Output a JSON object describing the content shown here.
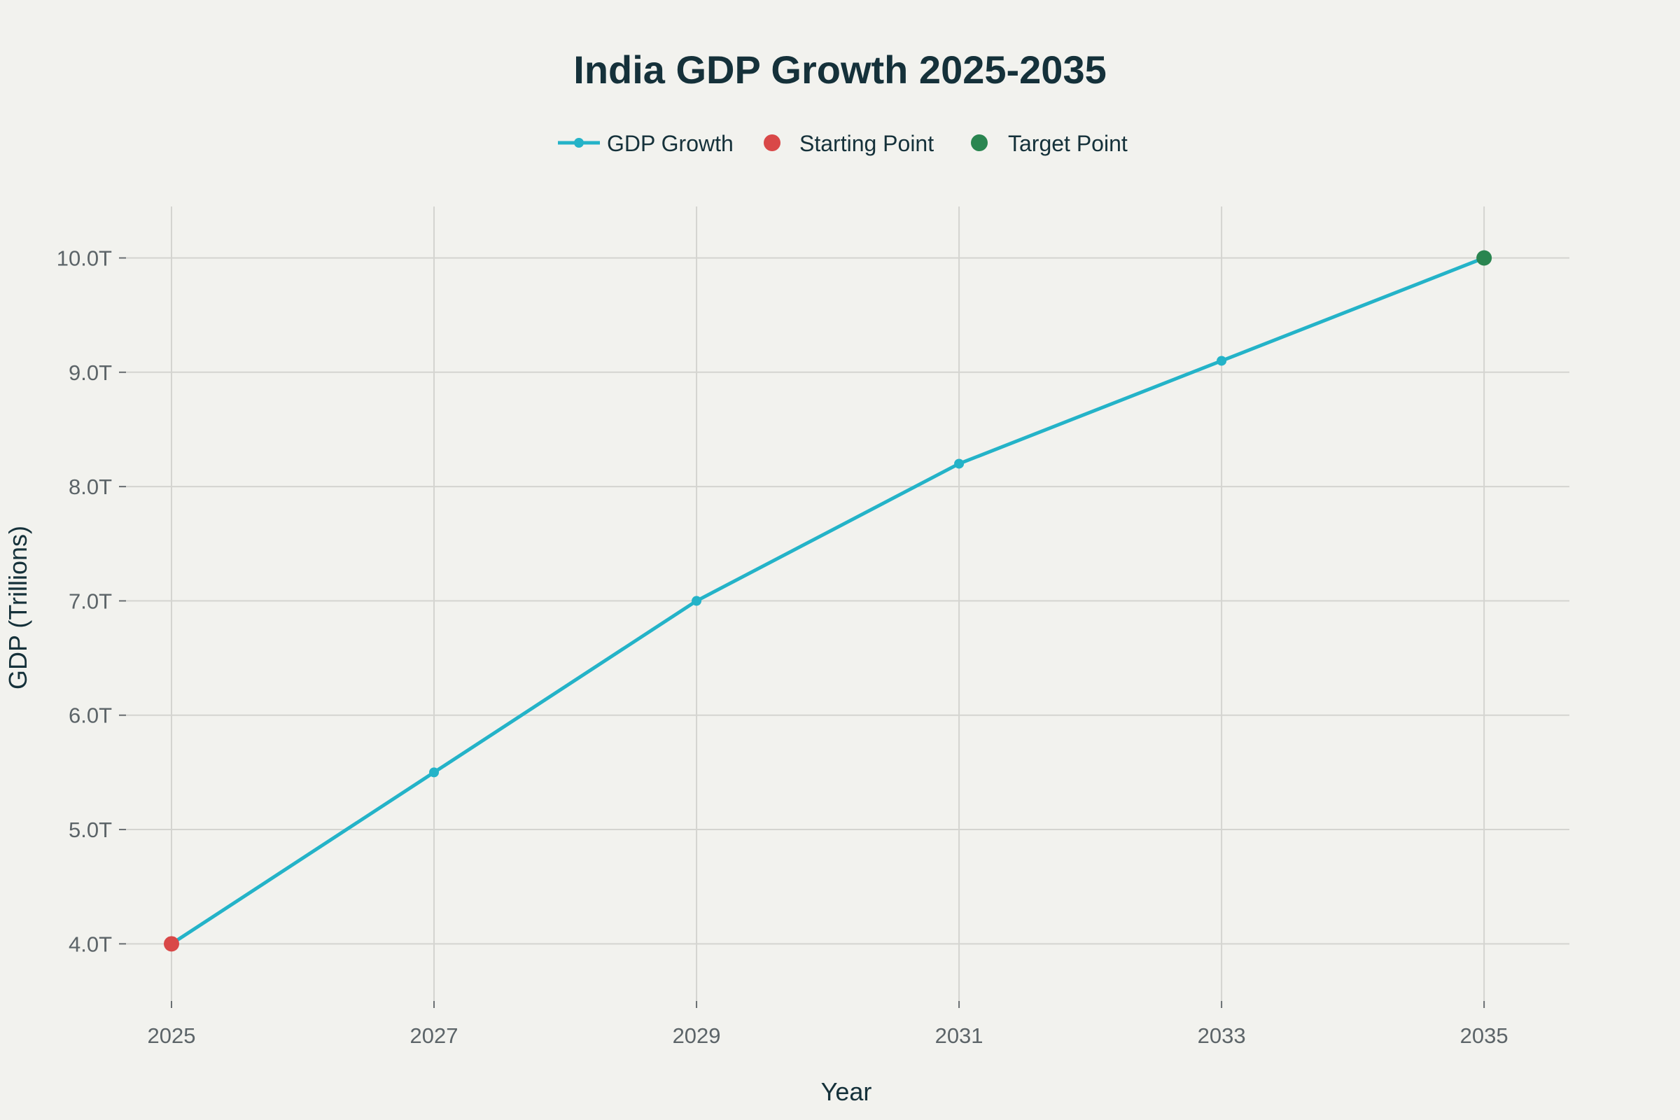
{
  "colors": {
    "background": "#f2f2ee",
    "series_line": "#24b3c8",
    "start_marker": "#d94848",
    "target_marker": "#2a8550",
    "title_text": "#15313a",
    "tick_text": "#5c6468"
  },
  "chart_data": {
    "type": "line",
    "title": "India GDP Growth 2025-2035",
    "xlabel": "Year",
    "ylabel": "GDP (Trillions)",
    "xlim": [
      2024.6,
      2035.65
    ],
    "ylim": [
      3.5,
      10.45
    ],
    "x_ticks": [
      2025,
      2027,
      2029,
      2031,
      2033,
      2035
    ],
    "x_tick_labels": [
      "2025",
      "2027",
      "2029",
      "2031",
      "2033",
      "2035"
    ],
    "y_ticks": [
      4,
      5,
      6,
      7,
      8,
      9,
      10
    ],
    "y_tick_labels": [
      "4.0T",
      "5.0T",
      "6.0T",
      "7.0T",
      "8.0T",
      "9.0T",
      "10.0T"
    ],
    "grid": true,
    "legend_position": "top-center",
    "series": [
      {
        "name": "GDP Growth",
        "kind": "line",
        "x": [
          2025,
          2027,
          2029,
          2031,
          2033,
          2035
        ],
        "y": [
          4.0,
          5.5,
          7.0,
          8.2,
          9.1,
          10.0
        ]
      },
      {
        "name": "Starting Point",
        "kind": "marker",
        "x": [
          2025
        ],
        "y": [
          4.0
        ]
      },
      {
        "name": "Target Point",
        "kind": "marker",
        "x": [
          2035
        ],
        "y": [
          10.0
        ]
      }
    ]
  }
}
